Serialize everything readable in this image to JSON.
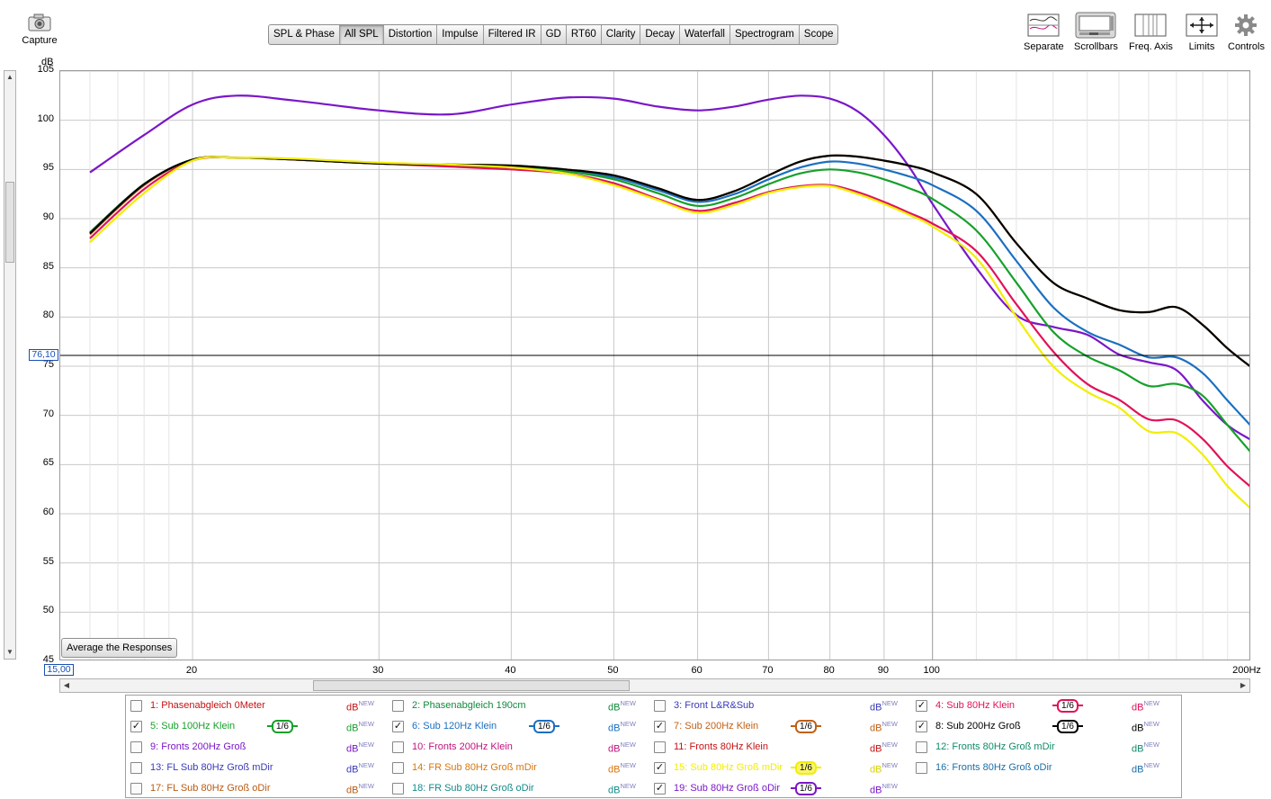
{
  "toolbar": {
    "capture_label": "Capture",
    "tabs": [
      {
        "label": "SPL & Phase",
        "active": false
      },
      {
        "label": "All SPL",
        "active": true
      },
      {
        "label": "Distortion",
        "active": false
      },
      {
        "label": "Impulse",
        "active": false
      },
      {
        "label": "Filtered IR",
        "active": false
      },
      {
        "label": "GD",
        "active": false
      },
      {
        "label": "RT60",
        "active": false
      },
      {
        "label": "Clarity",
        "active": false
      },
      {
        "label": "Decay",
        "active": false
      },
      {
        "label": "Waterfall",
        "active": false
      },
      {
        "label": "Spectrogram",
        "active": false
      },
      {
        "label": "Scope",
        "active": false
      }
    ],
    "right_tools": [
      {
        "label": "Separate",
        "icon": "separate-icon"
      },
      {
        "label": "Scrollbars",
        "icon": "scrollbars-icon"
      },
      {
        "label": "Freq. Axis",
        "icon": "freq-axis-icon"
      },
      {
        "label": "Limits",
        "icon": "limits-icon"
      },
      {
        "label": "Controls",
        "icon": "gear-icon"
      }
    ]
  },
  "graph": {
    "y_unit": "dB",
    "cursor_value": "76,10",
    "x_start": "15,00",
    "average_button": "Average the Responses"
  },
  "chart_data": {
    "type": "line",
    "x_scale": "log",
    "xlim": [
      15,
      200
    ],
    "ylim": [
      45,
      105
    ],
    "y_ticks": [
      45,
      50,
      55,
      60,
      65,
      70,
      75,
      80,
      85,
      90,
      95,
      100,
      105
    ],
    "y_tick_labels": [
      "45",
      "50",
      "55",
      "60",
      "65",
      "70",
      "75",
      "80",
      "85",
      "90",
      "95",
      "100",
      "105"
    ],
    "x_ticks": [
      20,
      30,
      40,
      50,
      60,
      70,
      80,
      90,
      100,
      200
    ],
    "x_tick_labels": [
      "20",
      "30",
      "40",
      "50",
      "60",
      "70",
      "80",
      "90",
      "100",
      "200Hz"
    ],
    "cursor_y": 76.1,
    "grid": true,
    "series": [
      {
        "name": "19: Sub 80Hz Groß oDir",
        "color": "#7a16c8",
        "x": [
          16,
          18,
          20,
          22,
          25,
          30,
          35,
          40,
          45,
          50,
          55,
          60,
          65,
          70,
          75,
          80,
          85,
          90,
          95,
          100,
          110,
          120,
          130,
          140,
          150,
          160,
          170,
          180,
          190,
          200
        ],
        "y": [
          94.7,
          98.5,
          101.6,
          102.5,
          102.0,
          101.0,
          100.6,
          101.6,
          102.3,
          102.2,
          101.4,
          101.0,
          101.4,
          102.1,
          102.5,
          102.2,
          100.9,
          98.5,
          95.3,
          91.5,
          85.0,
          80.2,
          79.0,
          78.2,
          76.2,
          75.4,
          74.6,
          71.5,
          69.0,
          67.5
        ]
      },
      {
        "name": "6: Sub 120Hz Klein",
        "color": "#1b6fc0",
        "x": [
          16,
          18,
          20,
          22,
          25,
          30,
          35,
          40,
          45,
          50,
          55,
          60,
          65,
          70,
          75,
          80,
          85,
          90,
          95,
          100,
          110,
          120,
          130,
          140,
          150,
          160,
          170,
          180,
          190,
          200
        ],
        "y": [
          88.6,
          93.5,
          96.0,
          96.2,
          96.0,
          95.6,
          95.4,
          95.3,
          94.9,
          94.2,
          92.9,
          91.7,
          92.5,
          94.0,
          95.2,
          95.8,
          95.6,
          95.0,
          94.3,
          93.4,
          90.8,
          85.7,
          81.0,
          78.5,
          77.2,
          75.9,
          75.9,
          74.3,
          71.5,
          68.9
        ]
      },
      {
        "name": "5: Sub 100Hz Klein",
        "color": "#16a02a",
        "x": [
          16,
          18,
          20,
          22,
          25,
          30,
          35,
          40,
          45,
          50,
          55,
          60,
          65,
          70,
          75,
          80,
          85,
          90,
          95,
          100,
          110,
          120,
          130,
          140,
          150,
          160,
          170,
          180,
          190,
          200
        ],
        "y": [
          88.6,
          93.5,
          96.0,
          96.2,
          96.0,
          95.6,
          95.4,
          95.2,
          94.8,
          94.0,
          92.6,
          91.3,
          92.1,
          93.5,
          94.6,
          95.0,
          94.7,
          94.0,
          93.1,
          92.0,
          88.8,
          83.5,
          78.5,
          76.0,
          74.6,
          73.0,
          73.2,
          72.0,
          69.0,
          66.2
        ]
      },
      {
        "name": "4: Sub 80Hz Klein",
        "color": "#e0125a",
        "x": [
          16,
          18,
          20,
          22,
          25,
          30,
          35,
          40,
          45,
          50,
          55,
          60,
          65,
          70,
          75,
          80,
          85,
          90,
          95,
          100,
          110,
          120,
          130,
          140,
          150,
          160,
          170,
          180,
          190,
          200
        ],
        "y": [
          88.0,
          93.0,
          95.9,
          96.2,
          96.0,
          95.6,
          95.3,
          95.0,
          94.6,
          93.6,
          92.0,
          90.8,
          91.6,
          92.7,
          93.3,
          93.4,
          92.7,
          91.7,
          90.6,
          89.5,
          86.7,
          81.3,
          76.5,
          73.2,
          71.6,
          69.6,
          69.5,
          67.6,
          64.8,
          62.7
        ]
      },
      {
        "name": "7: Sub 200Hz Klein",
        "color": "#c06014",
        "x": [
          16,
          18,
          20,
          22,
          25,
          30,
          35,
          40,
          45,
          50,
          55,
          60,
          65,
          70,
          75,
          80,
          85,
          90,
          95,
          100,
          110,
          120,
          130,
          140,
          150,
          160,
          170,
          180,
          190,
          200
        ],
        "y": [
          88.4,
          93.4,
          96.0,
          96.2,
          96.0,
          95.6,
          95.5,
          95.4,
          95.0,
          94.4,
          93.1,
          91.9,
          92.8,
          94.4,
          95.8,
          96.4,
          96.3,
          95.9,
          95.4,
          94.7,
          92.5,
          87.5,
          83.5,
          81.9,
          80.7,
          80.5,
          81.0,
          79.2,
          76.8,
          74.9
        ]
      },
      {
        "name": "8: Sub 200Hz Groß",
        "color": "#000000",
        "x": [
          16,
          18,
          20,
          22,
          25,
          30,
          35,
          40,
          45,
          50,
          55,
          60,
          65,
          70,
          75,
          80,
          85,
          90,
          95,
          100,
          110,
          120,
          130,
          140,
          150,
          160,
          170,
          180,
          190,
          200
        ],
        "y": [
          88.5,
          93.5,
          96.0,
          96.2,
          96.0,
          95.6,
          95.5,
          95.4,
          95.0,
          94.4,
          93.1,
          91.9,
          92.8,
          94.4,
          95.8,
          96.4,
          96.3,
          95.9,
          95.4,
          94.7,
          92.5,
          87.5,
          83.5,
          81.9,
          80.7,
          80.5,
          81.0,
          79.2,
          76.8,
          74.9
        ]
      },
      {
        "name": "15: Sub 80Hz Groß mDir",
        "color": "#f2ee00",
        "x": [
          16,
          18,
          20,
          22,
          25,
          30,
          35,
          40,
          45,
          50,
          55,
          60,
          65,
          70,
          75,
          80,
          85,
          90,
          95,
          100,
          110,
          120,
          130,
          140,
          150,
          160,
          170,
          180,
          190,
          200
        ],
        "y": [
          87.6,
          92.6,
          95.9,
          96.2,
          96.1,
          95.7,
          95.5,
          95.2,
          94.6,
          93.4,
          91.9,
          90.6,
          91.4,
          92.6,
          93.2,
          93.3,
          92.5,
          91.5,
          90.4,
          89.2,
          86.0,
          80.0,
          75.0,
          72.4,
          70.8,
          68.4,
          68.2,
          66.0,
          62.8,
          60.5
        ]
      }
    ]
  },
  "legend": [
    {
      "label": "1: Phasenabgleich 0Meter",
      "checked": false,
      "color": "#c41212"
    },
    {
      "label": "2: Phasenabgleich 190cm",
      "checked": false,
      "color": "#118a3c"
    },
    {
      "label": "3: Front L&R&Sub",
      "checked": false,
      "color": "#3a3ab8"
    },
    {
      "label": "4: Sub 80Hz Klein",
      "checked": true,
      "color": "#e0125a",
      "smoothing": "1/6"
    },
    {
      "label": "5: Sub 100Hz Klein",
      "checked": true,
      "color": "#16a02a",
      "smoothing": "1/6"
    },
    {
      "label": "6: Sub 120Hz Klein",
      "checked": true,
      "color": "#1b6fc0",
      "smoothing": "1/6"
    },
    {
      "label": "7: Sub 200Hz Klein",
      "checked": true,
      "color": "#c06014",
      "smoothing": "1/6"
    },
    {
      "label": "8: Sub 200Hz Groß",
      "checked": true,
      "color": "#000000",
      "smoothing": "1/6"
    },
    {
      "label": "9: Fronts 200Hz Groß",
      "checked": false,
      "color": "#7a16c8"
    },
    {
      "label": "10: Fronts 200Hz Klein",
      "checked": false,
      "color": "#c0127e"
    },
    {
      "label": "11: Fronts 80Hz Klein",
      "checked": false,
      "color": "#c41212"
    },
    {
      "label": "12: Fronts 80Hz Groß mDir",
      "checked": false,
      "color": "#118a6a"
    },
    {
      "label": "13: FL Sub 80Hz Groß mDir",
      "checked": false,
      "color": "#3a3ab8"
    },
    {
      "label": "14: FR Sub 80Hz Groß mDir",
      "checked": false,
      "color": "#d6760e"
    },
    {
      "label": "15: Sub 80Hz Groß mDir",
      "checked": true,
      "color": "#f2ee00",
      "smoothing": "1/6"
    },
    {
      "label": "16: Fronts 80Hz Groß oDir",
      "checked": false,
      "color": "#1b6fa8"
    },
    {
      "label": "17: FL Sub 80Hz Groß oDir",
      "checked": false,
      "color": "#b85a10"
    },
    {
      "label": "18: FR Sub 80Hz Groß oDir",
      "checked": false,
      "color": "#118a8a"
    },
    {
      "label": "19: Sub 80Hz Groß oDir",
      "checked": true,
      "color": "#7a16c8",
      "smoothing": "1/6"
    }
  ],
  "legend_db": {
    "text": "dB",
    "sup": "NEW"
  }
}
